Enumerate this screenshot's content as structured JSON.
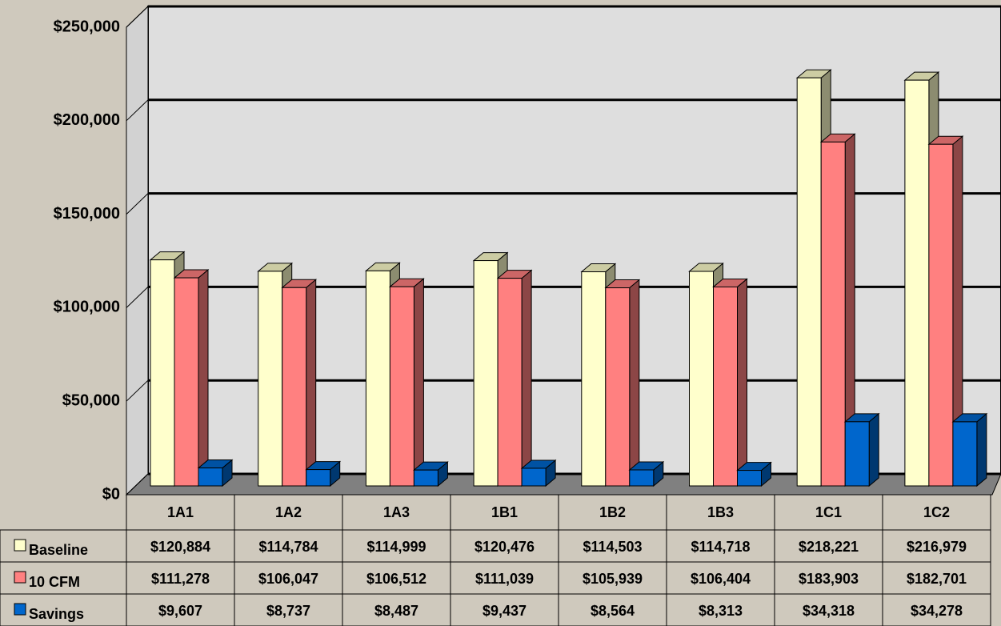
{
  "chart_data": {
    "type": "bar3d",
    "categories": [
      "1A1",
      "1A2",
      "1A3",
      "1B1",
      "1B2",
      "1B3",
      "1C1",
      "1C2"
    ],
    "series": [
      {
        "name": "Baseline",
        "color": "#ffffcc",
        "values": [
          120884,
          114784,
          114999,
          120476,
          114503,
          114718,
          218221,
          216979
        ],
        "value_labels": [
          "$120,884",
          "$114,784",
          "$114,999",
          "$120,476",
          "$114,503",
          "$114,718",
          "$218,221",
          "$216,979"
        ]
      },
      {
        "name": "10 CFM",
        "color": "#ff8080",
        "values": [
          111278,
          106047,
          106512,
          111039,
          105939,
          106404,
          183903,
          182701
        ],
        "value_labels": [
          "$111,278",
          "$106,047",
          "$106,512",
          "$111,039",
          "$105,939",
          "$106,404",
          "$183,903",
          "$182,701"
        ]
      },
      {
        "name": "Savings",
        "color": "#0066cc",
        "values": [
          9607,
          8737,
          8487,
          9437,
          8564,
          8313,
          34318,
          34278
        ],
        "value_labels": [
          "$9,607",
          "$8,737",
          "$8,487",
          "$9,437",
          "$8,564",
          "$8,313",
          "$34,318",
          "$34,278"
        ]
      }
    ],
    "ylim": [
      0,
      250000
    ],
    "yticks": [
      {
        "value": 0,
        "label": "$0"
      },
      {
        "value": 50000,
        "label": "$50,000"
      },
      {
        "value": 100000,
        "label": "$100,000"
      },
      {
        "value": 150000,
        "label": "$150,000"
      },
      {
        "value": 200000,
        "label": "$200,000"
      },
      {
        "value": 250000,
        "label": "$250,000"
      }
    ],
    "grid": true
  }
}
